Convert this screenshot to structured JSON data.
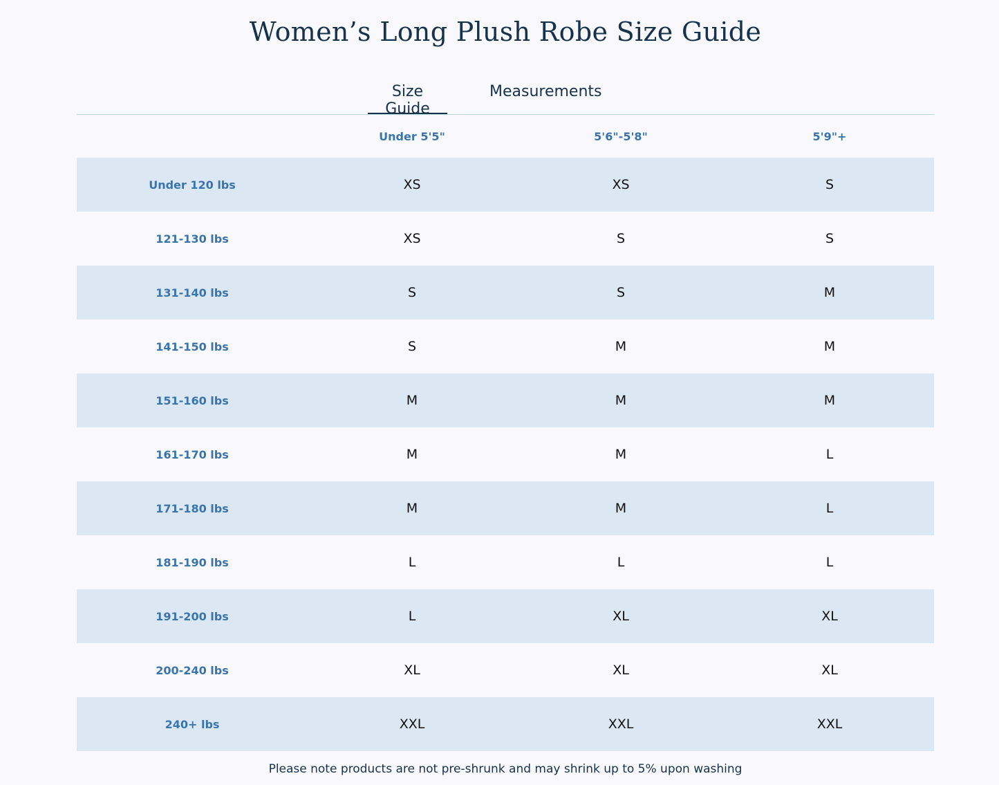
{
  "title": "Women’s Long Plush Robe Size Guide",
  "tabs": [
    {
      "label": "Size Guide",
      "active": true
    },
    {
      "label": "Measurements",
      "active": false
    }
  ],
  "table": {
    "columns": [
      "",
      "Under 5'5\"",
      "5'6\"-5'8\"",
      "5'9\"+"
    ],
    "rows": [
      {
        "weight": "Under 120 lbs",
        "sizes": [
          "XS",
          "XS",
          "S"
        ]
      },
      {
        "weight": "121-130 lbs",
        "sizes": [
          "XS",
          "S",
          "S"
        ]
      },
      {
        "weight": "131-140 lbs",
        "sizes": [
          "S",
          "S",
          "M"
        ]
      },
      {
        "weight": "141-150 lbs",
        "sizes": [
          "S",
          "M",
          "M"
        ]
      },
      {
        "weight": "151-160 lbs",
        "sizes": [
          "M",
          "M",
          "M"
        ]
      },
      {
        "weight": "161-170 lbs",
        "sizes": [
          "M",
          "M",
          "L"
        ]
      },
      {
        "weight": "171-180 lbs",
        "sizes": [
          "M",
          "M",
          "L"
        ]
      },
      {
        "weight": "181-190 lbs",
        "sizes": [
          "L",
          "L",
          "L"
        ]
      },
      {
        "weight": "191-200 lbs",
        "sizes": [
          "L",
          "XL",
          "XL"
        ]
      },
      {
        "weight": "200-240 lbs",
        "sizes": [
          "XL",
          "XL",
          "XL"
        ]
      },
      {
        "weight": "240+ lbs",
        "sizes": [
          "XXL",
          "XXL",
          "XXL"
        ]
      }
    ]
  },
  "note": "Please note products are not pre-shrunk and may shrink up to 5% upon washing",
  "colors": {
    "background": "#f8f8fd",
    "row_stripe": "#dce7f4",
    "header_text": "#3a74ad",
    "title_text": "#17324d",
    "divider": "#b6d6dc"
  }
}
